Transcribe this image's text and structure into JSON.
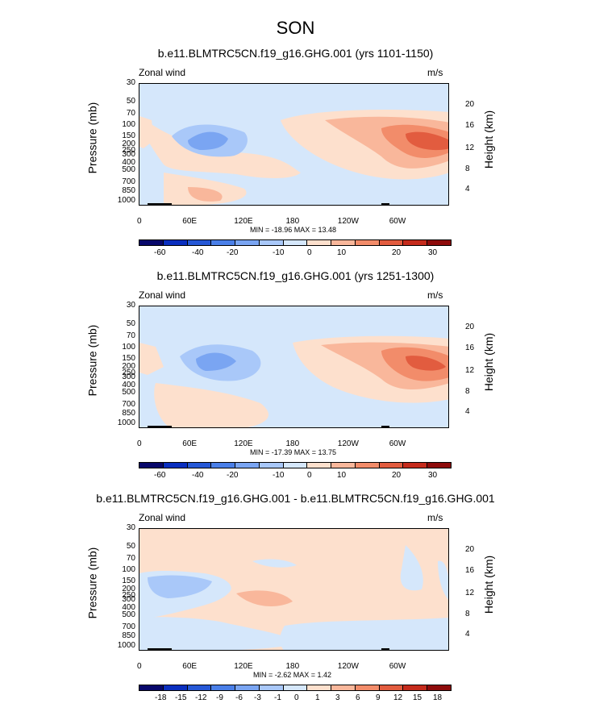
{
  "main_title": "SON",
  "colors": {
    "standard": [
      "#08086b",
      "#0a2fbf",
      "#2658d6",
      "#4a7fe8",
      "#7aa5f2",
      "#a9c8f9",
      "#d5e7fb",
      "#fde0cd",
      "#f9b79b",
      "#f28c6a",
      "#e25c3f",
      "#c52b1c",
      "#8e0b0b"
    ],
    "diff": [
      "#08086b",
      "#0a2fbf",
      "#2658d6",
      "#4a7fe8",
      "#7aa5f2",
      "#a9c8f9",
      "#d5e7fb",
      "#fde0cd",
      "#f9b79b",
      "#f28c6a",
      "#e25c3f",
      "#c52b1c",
      "#8e0b0b"
    ]
  },
  "panels": [
    {
      "title": "b.e11.BLMTRC5CN.f19_g16.GHG.001 (yrs 1101-1150)",
      "left_label": "Zonal wind",
      "right_label": "m/s",
      "minmax": "MIN = -18.96   MAX =  13.48",
      "colorbar_labels": [
        "-60",
        "-40",
        "-20",
        "-10",
        "0",
        "10",
        "20",
        "30"
      ]
    },
    {
      "title": "b.e11.BLMTRC5CN.f19_g16.GHG.001 (yrs 1251-1300)",
      "left_label": "Zonal wind",
      "right_label": "m/s",
      "minmax": "MIN = -17.39   MAX =  13.75",
      "colorbar_labels": [
        "-60",
        "-40",
        "-20",
        "-10",
        "0",
        "10",
        "20",
        "30"
      ]
    },
    {
      "title": "b.e11.BLMTRC5CN.f19_g16.GHG.001 - b.e11.BLMTRC5CN.f19_g16.GHG.001",
      "left_label": "Zonal wind",
      "right_label": "m/s",
      "minmax": "MIN = -2.62   MAX =  1.42",
      "colorbar_labels": [
        "-18",
        "-15",
        "-12",
        "-9",
        "-6",
        "-3",
        "-1",
        "0",
        "1",
        "3",
        "6",
        "9",
        "12",
        "15",
        "18"
      ]
    }
  ],
  "chart_data": [
    {
      "type": "heatmap",
      "title": "b.e11.BLMTRC5CN.f19_g16.GHG.001 (yrs 1101-1150)",
      "variable": "Zonal wind",
      "units": "m/s",
      "xlabel": "",
      "ylabel": "Pressure (mb)",
      "y2label": "Height (km)",
      "x_ticks": [
        "0",
        "60E",
        "120E",
        "180",
        "120W",
        "60W"
      ],
      "y_ticks": [
        "30",
        "50",
        "70",
        "100",
        "150",
        "200",
        "250",
        "300",
        "400",
        "500",
        "700",
        "850",
        "1000"
      ],
      "y2_ticks": [
        "20",
        "16",
        "12",
        "8",
        "4"
      ],
      "levels": [
        -60,
        -50,
        -40,
        -30,
        -20,
        -10,
        0,
        10,
        20,
        30,
        40,
        50
      ],
      "min": -18.96,
      "max": 13.48,
      "features": "westerly maximum near 150 mb over the Pacific/western hemisphere; easterly minimum near 150 mb around 60E-100E"
    },
    {
      "type": "heatmap",
      "title": "b.e11.BLMTRC5CN.f19_g16.GHG.001 (yrs 1251-1300)",
      "variable": "Zonal wind",
      "units": "m/s",
      "xlabel": "",
      "ylabel": "Pressure (mb)",
      "y2label": "Height (km)",
      "x_ticks": [
        "0",
        "60E",
        "120E",
        "180",
        "120W",
        "60W"
      ],
      "y_ticks": [
        "30",
        "50",
        "70",
        "100",
        "150",
        "200",
        "250",
        "300",
        "400",
        "500",
        "700",
        "850",
        "1000"
      ],
      "y2_ticks": [
        "20",
        "16",
        "12",
        "8",
        "4"
      ],
      "levels": [
        -60,
        -50,
        -40,
        -30,
        -20,
        -10,
        0,
        10,
        20,
        30,
        40,
        50
      ],
      "min": -17.39,
      "max": 13.75
    },
    {
      "type": "heatmap",
      "title": "b.e11.BLMTRC5CN.f19_g16.GHG.001 - b.e11.BLMTRC5CN.f19_g16.GHG.001",
      "variable": "Zonal wind",
      "units": "m/s",
      "xlabel": "",
      "ylabel": "Pressure (mb)",
      "y2label": "Height (km)",
      "x_ticks": [
        "0",
        "60E",
        "120E",
        "180",
        "120W",
        "60W"
      ],
      "y_ticks": [
        "30",
        "50",
        "70",
        "100",
        "150",
        "200",
        "250",
        "300",
        "400",
        "500",
        "700",
        "850",
        "1000"
      ],
      "y2_ticks": [
        "20",
        "16",
        "12",
        "8",
        "4"
      ],
      "levels": [
        -18,
        -15,
        -12,
        -9,
        -6,
        -3,
        -1,
        0,
        1,
        3,
        6,
        9,
        12,
        15,
        18
      ],
      "min": -2.62,
      "max": 1.42
    }
  ],
  "axis_text": {
    "ylabel": "Pressure (mb)",
    "y2label": "Height (km)",
    "x_ticks": [
      "0",
      "60E",
      "120E",
      "180",
      "120W",
      "60W"
    ],
    "y_ticks": [
      "30",
      "50",
      "70",
      "100",
      "150",
      "200",
      "250",
      "300",
      "400",
      "500",
      "700",
      "850",
      "1000"
    ],
    "y2_ticks": [
      "20",
      "16",
      "12",
      "8",
      "4"
    ]
  }
}
